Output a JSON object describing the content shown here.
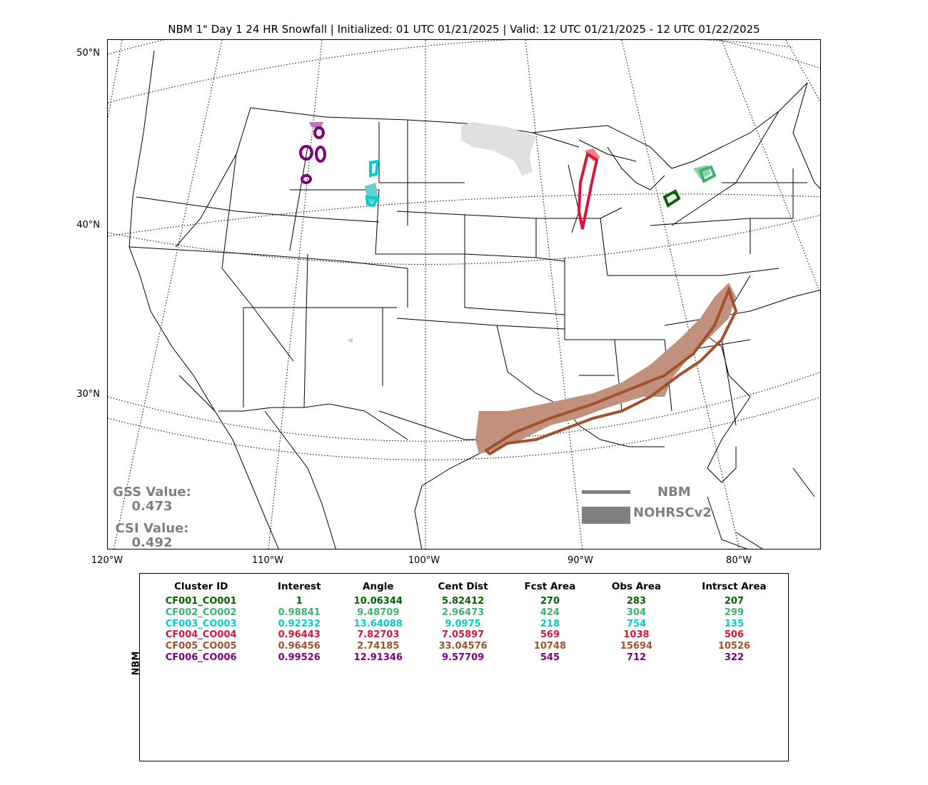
{
  "title": "NBM 1\" Day 1 24 HR Snowfall | Initialized: 01 UTC 01/21/2025 | Valid: 12 UTC 01/21/2025 - 12 UTC 01/22/2025",
  "lat_labels": [
    "50°N",
    "40°N",
    "30°N"
  ],
  "lon_labels": [
    "120°W",
    "110°W",
    "100°W",
    "90°W",
    "80°W"
  ],
  "scores": {
    "gss_label": "GSS Value:",
    "gss_value": "0.473",
    "csi_label": "CSI Value:",
    "csi_value": "0.492"
  },
  "legend": {
    "forecast": "NBM",
    "observed": "NOHRSCv2"
  },
  "colors": {
    "legend_gray": "#808080",
    "cluster_colors": [
      "#006400",
      "#3cb371",
      "#00ced1",
      "#dc143c",
      "#a0522d",
      "#800080"
    ]
  },
  "table": {
    "side_label": "NBM",
    "headers": [
      "Cluster ID",
      "Interest",
      "Angle",
      "Cent Dist",
      "Fcst Area",
      "Obs Area",
      "Intrsct Area"
    ],
    "rows": [
      {
        "color": "#006400",
        "cells": [
          "CF001_CO001",
          "1",
          "10.06344",
          "5.82412",
          "270",
          "283",
          "207"
        ]
      },
      {
        "color": "#3cb371",
        "cells": [
          "CF002_CO002",
          "0.98841",
          "9.48709",
          "2.96473",
          "424",
          "304",
          "299"
        ]
      },
      {
        "color": "#00ced1",
        "cells": [
          "CF003_CO003",
          "0.92232",
          "13.64088",
          "9.0975",
          "218",
          "754",
          "135"
        ]
      },
      {
        "color": "#dc143c",
        "cells": [
          "CF004_CO004",
          "0.96443",
          "7.82703",
          "7.05897",
          "569",
          "1038",
          "506"
        ]
      },
      {
        "color": "#a0522d",
        "cells": [
          "CF005_CO005",
          "0.96456",
          "2.74185",
          "33.04576",
          "10748",
          "15694",
          "10526"
        ]
      },
      {
        "color": "#800080",
        "cells": [
          "CF006_CO006",
          "0.99526",
          "12.91346",
          "9.57709",
          "545",
          "712",
          "322"
        ]
      }
    ]
  }
}
